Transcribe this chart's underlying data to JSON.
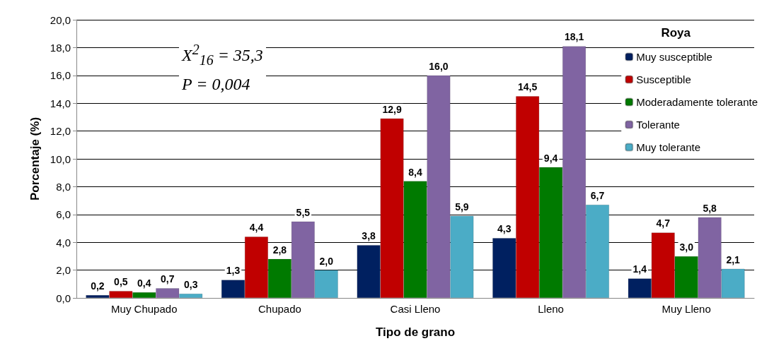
{
  "chart_data": {
    "type": "bar",
    "xlabel": "Tipo de grano",
    "ylabel": "Porcentaje (%)",
    "legend_title": "Roya",
    "legend": "top right",
    "grid": "y",
    "annotations": [
      "X$^{2}$$_{16}$ = 35,3",
      "P = 0,004"
    ],
    "categories": [
      "Muy Chupado",
      "Chupado",
      "Casi Lleno",
      "Lleno",
      "Muy Lleno"
    ],
    "ylim": [
      0,
      20
    ],
    "yticks": [
      {
        "value": 0,
        "label": "0,0"
      },
      {
        "value": 2,
        "label": "2,0"
      },
      {
        "value": 4,
        "label": "4,0"
      },
      {
        "value": 6,
        "label": "6,0"
      },
      {
        "value": 8,
        "label": "8,0"
      },
      {
        "value": 10,
        "label": "10,0"
      },
      {
        "value": 12,
        "label": "12,0"
      },
      {
        "value": 14,
        "label": "14,0"
      },
      {
        "value": 16,
        "label": "16,0"
      },
      {
        "value": 18,
        "label": "18,0"
      },
      {
        "value": 20,
        "label": "20,0"
      }
    ],
    "series": [
      {
        "name": "Muy susceptible",
        "color": "#002060",
        "values": [
          0.2,
          1.3,
          3.8,
          4.3,
          1.4
        ],
        "value_labels": [
          "0,2",
          "1,3",
          "3,8",
          "4,3",
          "1,4"
        ]
      },
      {
        "name": "Susceptible",
        "color": "#c00000",
        "values": [
          0.5,
          4.4,
          12.9,
          14.5,
          4.7
        ],
        "value_labels": [
          "0,5",
          "4,4",
          "12,9",
          "14,5",
          "4,7"
        ]
      },
      {
        "name": "Moderadamente tolerante",
        "color": "#007a00",
        "values": [
          0.4,
          2.8,
          8.4,
          9.4,
          3.0
        ],
        "value_labels": [
          "0,4",
          "2,8",
          "8,4",
          "9,4",
          "3,0"
        ]
      },
      {
        "name": "Tolerante",
        "color": "#8064a2",
        "values": [
          0.7,
          5.5,
          16.0,
          18.1,
          5.8
        ],
        "value_labels": [
          "0,7",
          "5,5",
          "16,0",
          "18,1",
          "5,8"
        ]
      },
      {
        "name": "Muy tolerante",
        "color": "#4bacc6",
        "values": [
          0.3,
          2.0,
          5.9,
          6.7,
          2.1
        ],
        "value_labels": [
          "0,3",
          "2,0",
          "5,9",
          "6,7",
          "2,1"
        ]
      }
    ]
  }
}
